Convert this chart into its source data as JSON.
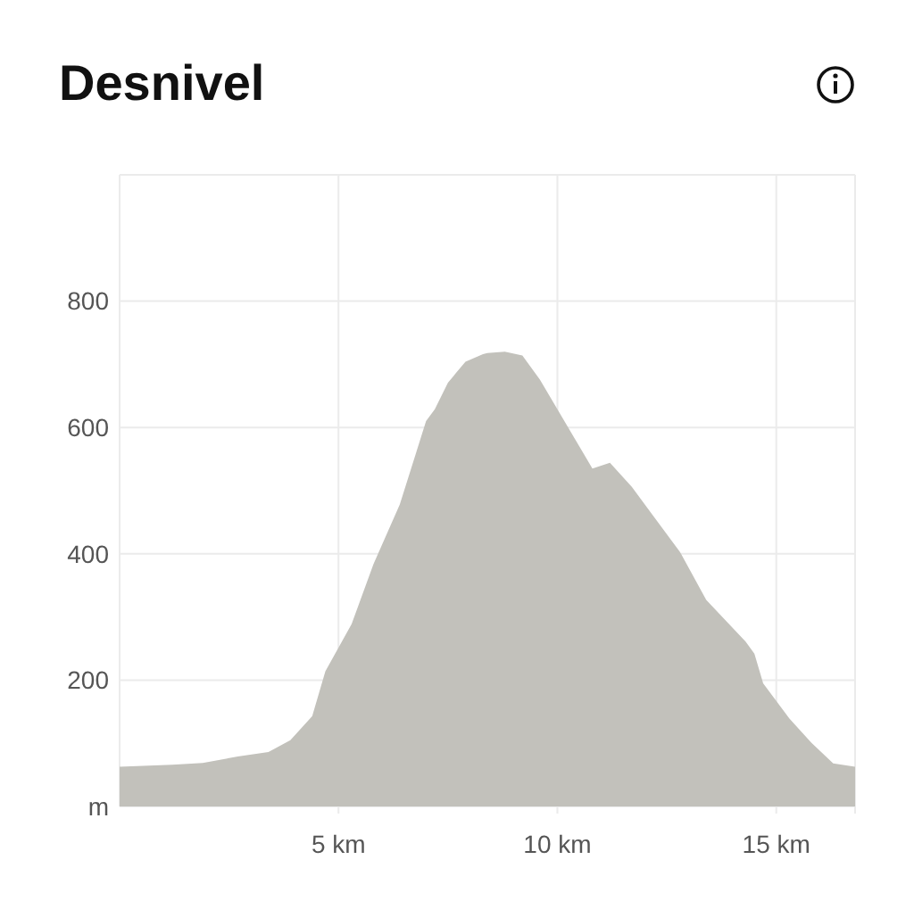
{
  "chart_data": {
    "type": "area",
    "title": "Desnivel",
    "x": [
      0,
      1.2,
      1.9,
      2.7,
      3.4,
      3.9,
      4.4,
      4.7,
      5.3,
      5.8,
      6.4,
      7.0,
      7.2,
      7.5,
      7.9,
      8.3,
      8.4,
      8.8,
      9.2,
      9.6,
      10.0,
      10.4,
      10.8,
      11.2,
      11.7,
      12.2,
      12.8,
      13.4,
      14.3,
      14.5,
      14.7,
      15.3,
      15.8,
      16.3,
      16.8
    ],
    "series": [
      {
        "color": "#c2c1bb",
        "values": [
          63,
          66,
          69,
          79,
          86,
          105,
          143,
          214,
          289,
          384,
          478,
          610,
          629,
          671,
          704,
          716,
          718,
          720,
          714,
          676,
          629,
          582,
          535,
          544,
          506,
          459,
          403,
          327,
          261,
          242,
          195,
          139,
          101,
          68,
          63
        ]
      }
    ],
    "xlim": [
      0,
      16.8
    ],
    "xticks": [
      {
        "value": 5,
        "label": "5 km"
      },
      {
        "value": 10,
        "label": "10 km"
      },
      {
        "value": 15,
        "label": "15 km"
      }
    ],
    "ylim": [
      0,
      1000
    ],
    "yticks": [
      {
        "value": 0,
        "label": "m"
      },
      200,
      400,
      600,
      800,
      {
        "value": 1000,
        "label": null
      }
    ],
    "grid": true
  }
}
